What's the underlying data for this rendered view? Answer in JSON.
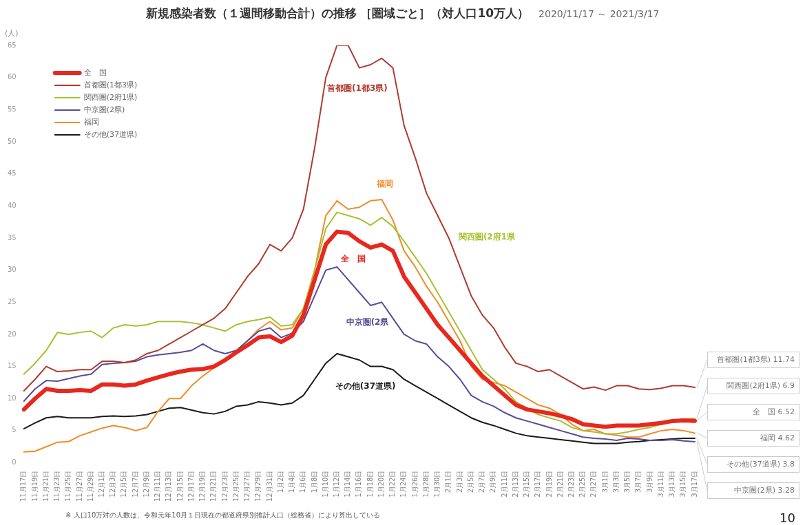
{
  "chart_data": {
    "type": "line",
    "title": "新規感染者数（１週間移動合計）の推移 ［圏域ごと］（対人口10万人）",
    "subtitle": "2020/11/17 ～ 2021/3/17",
    "ylabel": "(人)",
    "categories": [
      "11月17日",
      "11月19日",
      "11月21日",
      "11月23日",
      "11月25日",
      "11月27日",
      "11月29日",
      "12月1日",
      "12月3日",
      "12月5日",
      "12月7日",
      "12月9日",
      "12月11日",
      "12月13日",
      "12月15日",
      "12月17日",
      "12月19日",
      "12月21日",
      "12月23日",
      "12月25日",
      "12月27日",
      "12月29日",
      "12月31日",
      "1月2日",
      "1月4日",
      "1月6日",
      "1月8日",
      "1月10日",
      "1月12日",
      "1月14日",
      "1月16日",
      "1月18日",
      "1月20日",
      "1月22日",
      "1月24日",
      "1月26日",
      "1月28日",
      "1月30日",
      "2月1日",
      "2月3日",
      "2月5日",
      "2月7日",
      "2月9日",
      "2月11日",
      "2月13日",
      "2月15日",
      "2月17日",
      "2月19日",
      "2月21日",
      "2月23日",
      "2月25日",
      "2月27日",
      "3月1日",
      "3月3日",
      "3月5日",
      "3月7日",
      "3月9日",
      "3月11日",
      "3月13日",
      "3月15日",
      "3月17日"
    ],
    "series": [
      {
        "name": "全　国",
        "color": "#e8281e",
        "values": [
          8.3,
          10,
          11.5,
          11.2,
          11.2,
          11.3,
          11.2,
          12.2,
          12.2,
          12,
          12.2,
          12.8,
          13.3,
          13.8,
          14.2,
          14.5,
          14.6,
          15,
          16,
          17.2,
          18.3,
          19.5,
          19.7,
          18.8,
          19.8,
          23,
          28.5,
          34,
          36,
          35.8,
          34.5,
          33.5,
          34,
          33,
          29,
          26.5,
          24,
          21.5,
          19.5,
          17.5,
          15.5,
          13.5,
          12,
          10.5,
          9,
          8.3,
          8,
          7.7,
          7.3,
          6.8,
          6,
          5.8,
          5.6,
          5.8,
          5.8,
          5.8,
          6,
          6.2,
          6.5,
          6.6,
          6.52
        ]
      },
      {
        "name": "首都圏(1都3県)",
        "color": "#b03a2e",
        "values": [
          11.2,
          13,
          15,
          14.2,
          14.3,
          14.5,
          14.5,
          15.8,
          15.8,
          15.6,
          16,
          17,
          17.5,
          18.5,
          19.5,
          20.5,
          21.5,
          22.5,
          24,
          26.5,
          29,
          31,
          34,
          33,
          35,
          39.5,
          49,
          60,
          65,
          65,
          61.5,
          62,
          63,
          61.5,
          52.5,
          47.5,
          42,
          38.5,
          35,
          30.5,
          26,
          23,
          21,
          18,
          15.5,
          15,
          14.2,
          14.5,
          13.5,
          12.5,
          11.5,
          11.8,
          11.3,
          12,
          12,
          11.5,
          11.4,
          11.6,
          12,
          12,
          11.74
        ]
      },
      {
        "name": "関西圏(2府1県)",
        "color": "#a8c030",
        "values": [
          13.8,
          15.5,
          17.5,
          20.3,
          20,
          20.3,
          20.5,
          19.5,
          21,
          21.5,
          21.3,
          21.5,
          22,
          22,
          22,
          21.8,
          21.5,
          21,
          20.5,
          21.5,
          22,
          22.3,
          22.7,
          21.3,
          21.5,
          24,
          30,
          36.5,
          39,
          38.5,
          38,
          37,
          38.2,
          36.8,
          34.5,
          32,
          29.5,
          26.5,
          23.5,
          20.5,
          17.5,
          14.5,
          13,
          11.5,
          9.5,
          8.5,
          7.5,
          7,
          6.5,
          5.5,
          5,
          4.8,
          4.5,
          4.5,
          4.8,
          5.2,
          5.5,
          6,
          6.5,
          6.8,
          6.9
        ]
      },
      {
        "name": "中京圏(2県)",
        "color": "#5a4a9a",
        "values": [
          9.6,
          11.5,
          12.8,
          12.7,
          13.1,
          13.5,
          13.8,
          15.3,
          15.5,
          15.6,
          15.8,
          16.5,
          16.8,
          17,
          17.2,
          17.5,
          18.5,
          17.5,
          17,
          17.5,
          19,
          20.5,
          21,
          19.5,
          20.2,
          22,
          26,
          30,
          30.5,
          28.5,
          26.5,
          24.5,
          25,
          22.5,
          20,
          19,
          18.5,
          16.5,
          15,
          13,
          10.5,
          9.5,
          8.8,
          7.8,
          7,
          6.5,
          6,
          5.5,
          5,
          4.5,
          4,
          3.8,
          3.7,
          3.5,
          3.8,
          3.7,
          3.5,
          3.5,
          3.6,
          3.4,
          3.28
        ]
      },
      {
        "name": "福岡",
        "color": "#f08c28",
        "values": [
          1.7,
          1.8,
          2.5,
          3.2,
          3.3,
          4.2,
          4.8,
          5.4,
          5.8,
          5.5,
          5,
          5.5,
          8,
          10,
          10,
          12,
          13.5,
          14.8,
          15.8,
          17.2,
          19,
          20.8,
          22,
          20.7,
          21,
          24,
          30,
          38.5,
          40.8,
          39.5,
          39.8,
          40.8,
          41,
          37.8,
          33,
          30.5,
          27.5,
          25,
          22,
          19,
          15,
          13,
          12.5,
          12,
          11,
          10,
          9,
          8.5,
          7.5,
          6,
          5,
          5.2,
          4.5,
          4.3,
          4,
          4,
          4.5,
          5,
          5.2,
          5,
          4.62
        ]
      },
      {
        "name": "その他(37道県)",
        "color": "#1a1a1a",
        "values": [
          5.3,
          6.2,
          7,
          7.2,
          7,
          7,
          7,
          7.2,
          7.3,
          7.2,
          7.3,
          7.5,
          8,
          8.5,
          8.6,
          8.2,
          7.8,
          7.6,
          8,
          8.8,
          9,
          9.5,
          9.3,
          9,
          9.3,
          10.5,
          13,
          15.5,
          17,
          16.5,
          16,
          15,
          15,
          14.5,
          13,
          12,
          11,
          10,
          9,
          8,
          7,
          6.3,
          5.8,
          5.2,
          4.6,
          4.2,
          4,
          3.8,
          3.6,
          3.4,
          3.2,
          3,
          3,
          3,
          3.2,
          3.3,
          3.5,
          3.6,
          3.7,
          3.8,
          3.8
        ]
      }
    ],
    "ylim": [
      0,
      65
    ],
    "yticks": [
      0,
      5,
      10,
      15,
      20,
      25,
      30,
      35,
      40,
      45,
      50,
      55,
      60,
      65
    ],
    "grid": false,
    "legend": "top left",
    "marker": "none",
    "line_style": "solid",
    "annotations": [
      "全　国",
      "首都圏(1都3県)",
      "関西圏(2府1県",
      "中京圏(2県",
      "福岡",
      "その他(37道県)",
      "首都圏(1都3県) 11.74",
      "関西圏(2府1県) 6.9",
      "全　国 6.52",
      "福岡 4.62",
      "その他(37道県) 3.8",
      "中京圏(2県) 3.28",
      "※ 人口10万対の人数は、令和元年10月１日現在の都道府県別推計人口（総務省）により算出している",
      "10"
    ]
  }
}
